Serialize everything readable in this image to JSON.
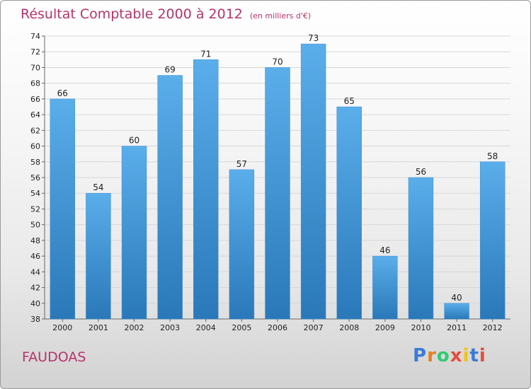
{
  "title": "Résultat Comptable 2000 à 2012",
  "subtitle": "(en milliers d'€)",
  "place_name": "FAUDOAS",
  "logo": {
    "text": "Proxiti",
    "letters": [
      "P",
      "r",
      "o",
      "x",
      "i",
      "t",
      "i"
    ],
    "colors": [
      "#3a7bd5",
      "#e67e22",
      "#2ecc71",
      "#e74c3c",
      "#f1c40f",
      "#3a7bd5",
      "#e74c3c"
    ]
  },
  "chart_data": {
    "type": "bar",
    "categories": [
      "2000",
      "2001",
      "2002",
      "2003",
      "2004",
      "2005",
      "2006",
      "2007",
      "2008",
      "2009",
      "2010",
      "2011",
      "2012"
    ],
    "values": [
      66,
      54,
      60,
      69,
      71,
      57,
      70,
      73,
      65,
      46,
      56,
      40,
      58
    ],
    "ylim": [
      38,
      74
    ],
    "yticks": [
      38,
      40,
      42,
      44,
      46,
      48,
      50,
      52,
      54,
      56,
      58,
      60,
      62,
      64,
      66,
      68,
      70,
      72,
      74
    ],
    "grid": true,
    "bar_color": "#4a9de0"
  }
}
